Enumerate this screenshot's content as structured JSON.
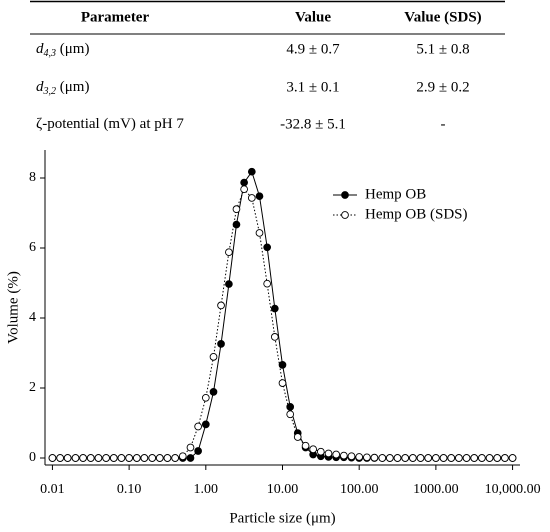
{
  "table": {
    "header": [
      "Parameter",
      "Value",
      "Value (SDS)"
    ],
    "rows": [
      {
        "label": {
          "italic": "d",
          "sub": "4,3",
          "rest": " (μm)"
        },
        "value": "4.9 ± 0.7",
        "sds": "5.1 ± 0.8"
      },
      {
        "label": {
          "italic": "d",
          "sub": "3,2",
          "rest": " (μm)"
        },
        "value": "3.1 ± 0.1",
        "sds": "2.9 ± 0.2"
      },
      {
        "label": {
          "rest": "ζ-potential (mV) at pH 7"
        },
        "value": "-32.8 ± 5.1",
        "sds": "-"
      }
    ]
  },
  "chart_data": {
    "type": "line",
    "xlabel": "Particle size (μm)",
    "ylabel": "Volume (%)",
    "xscale": "log",
    "x": [
      0.01,
      0.0126,
      0.0158,
      0.02,
      0.0251,
      0.0316,
      0.0398,
      0.0501,
      0.0631,
      0.0794,
      0.1,
      0.126,
      0.158,
      0.2,
      0.251,
      0.316,
      0.398,
      0.501,
      0.631,
      0.794,
      1,
      1.26,
      1.58,
      2,
      2.51,
      3.16,
      3.98,
      5.01,
      6.31,
      7.94,
      10,
      12.6,
      15.8,
      20,
      25.1,
      31.6,
      39.8,
      50.1,
      63.1,
      79.4,
      100,
      126,
      158,
      200,
      251,
      316,
      398,
      501,
      631,
      794,
      1000,
      1259,
      1585,
      1995,
      2512,
      3162,
      3981,
      5012,
      6310,
      7943,
      10000
    ],
    "series": [
      {
        "name": "Hemp OB",
        "color": "#000000",
        "marker": "filled",
        "line": "solid",
        "values": [
          0,
          0,
          0,
          0,
          0,
          0,
          0,
          0,
          0,
          0,
          0,
          0,
          0,
          0,
          0,
          0,
          0,
          0,
          0,
          0.2,
          0.96,
          1.89,
          3.26,
          4.97,
          6.67,
          7.87,
          8.18,
          7.48,
          6.02,
          4.27,
          2.66,
          1.46,
          0.71,
          0.3,
          0.1,
          0.05,
          0.03,
          0.02,
          0.02,
          0.01,
          0,
          0,
          0,
          0,
          0,
          0,
          0,
          0,
          0,
          0,
          0,
          0,
          0,
          0,
          0,
          0,
          0,
          0,
          0,
          0,
          0
        ]
      },
      {
        "name": "Hemp OB (SDS)",
        "color": "#000000",
        "marker": "open",
        "line": "dotted",
        "values": [
          0,
          0,
          0,
          0,
          0,
          0,
          0,
          0,
          0,
          0,
          0,
          0,
          0,
          0,
          0,
          0,
          0,
          0.05,
          0.3,
          0.9,
          1.72,
          2.89,
          4.36,
          5.88,
          7.11,
          7.68,
          7.43,
          6.43,
          4.98,
          3.46,
          2.14,
          1.25,
          0.6,
          0.35,
          0.25,
          0.18,
          0.13,
          0.1,
          0.07,
          0.05,
          0.03,
          0.02,
          0.01,
          0,
          0,
          0,
          0,
          0,
          0,
          0,
          0,
          0,
          0,
          0,
          0,
          0,
          0,
          0,
          0,
          0,
          0
        ]
      }
    ],
    "xlim": [
      0.008,
      12500
    ],
    "xticks": [
      0.01,
      {
        "value": 0.1,
        "label": "0.10"
      },
      {
        "value": 1,
        "label": "1.00"
      },
      {
        "value": 10,
        "label": "10.00"
      },
      {
        "value": 100,
        "label": "100.00"
      },
      {
        "value": 1000,
        "label": "1000.00"
      },
      {
        "value": 10000,
        "label": "10,000.00"
      }
    ],
    "ylim": [
      -0.2,
      8.8
    ],
    "yticks": [
      0,
      2,
      4,
      6,
      8
    ],
    "legend": "upper right"
  }
}
